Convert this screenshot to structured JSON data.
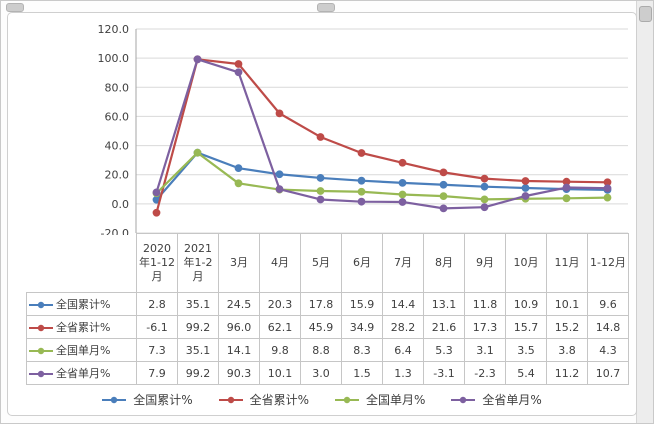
{
  "chart_data": {
    "type": "line",
    "categories": [
      "2020年1-12月",
      "2021年1-2月",
      "3月",
      "4月",
      "5月",
      "6月",
      "7月",
      "8月",
      "9月",
      "10月",
      "11月",
      "1-12月"
    ],
    "y_axis": {
      "min": -20,
      "max": 120,
      "step": 20,
      "tick_labels": [
        "120.0",
        "100.0",
        "80.0",
        "60.0",
        "40.0",
        "20.0",
        "0.0",
        "-20.0"
      ]
    },
    "grid": true,
    "legend_position": "bottom",
    "data_table_shown": true,
    "series": [
      {
        "name": "全国累计%",
        "color": "#4A7EBB",
        "values": [
          2.8,
          35.1,
          24.5,
          20.3,
          17.8,
          15.9,
          14.4,
          13.1,
          11.8,
          10.9,
          10.1,
          9.6
        ]
      },
      {
        "name": "全省累计%",
        "color": "#BE4B48",
        "values": [
          -6.1,
          99.2,
          96.0,
          62.1,
          45.9,
          34.9,
          28.2,
          21.6,
          17.3,
          15.7,
          15.2,
          14.8
        ]
      },
      {
        "name": "全国单月%",
        "color": "#98B954",
        "values": [
          7.3,
          35.1,
          14.1,
          9.8,
          8.8,
          8.3,
          6.4,
          5.3,
          3.1,
          3.5,
          3.8,
          4.3
        ]
      },
      {
        "name": "全省单月%",
        "color": "#7D60A0",
        "values": [
          7.9,
          99.2,
          90.3,
          10.1,
          3.0,
          1.5,
          1.3,
          -3.1,
          -2.3,
          5.4,
          11.2,
          10.7
        ]
      }
    ]
  }
}
